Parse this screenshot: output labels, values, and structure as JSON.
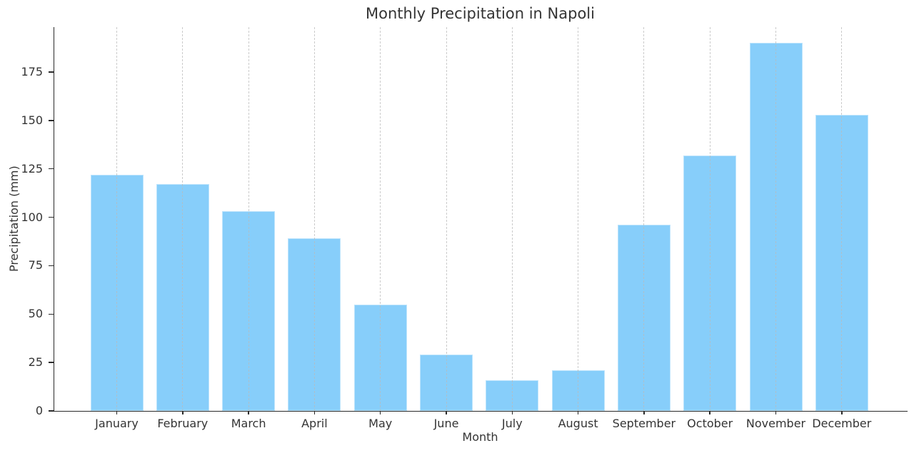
{
  "chart_data": {
    "type": "bar",
    "title": "Monthly Precipitation in Napoli",
    "xlabel": "Month",
    "ylabel": "Precipitation (mm)",
    "categories": [
      "January",
      "February",
      "March",
      "April",
      "May",
      "June",
      "July",
      "August",
      "September",
      "October",
      "November",
      "December"
    ],
    "values": [
      122,
      117,
      103,
      89,
      55,
      29,
      16,
      21,
      96,
      132,
      190,
      153
    ],
    "yticks": [
      0,
      25,
      50,
      75,
      100,
      125,
      150,
      175
    ],
    "ylim": [
      0,
      198
    ],
    "grid": "vertical-dashed-at-category-centers",
    "legend": "none",
    "bar_color": "#87CEFA",
    "grid_color": "#bbbbbb",
    "axis_color": "#2a2a2a",
    "text_color": "#343434",
    "background_color": "#ffffff"
  }
}
